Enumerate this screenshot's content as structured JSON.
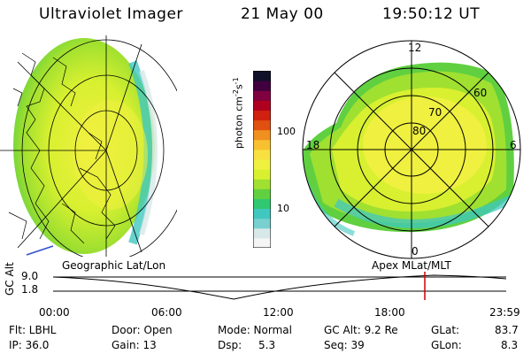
{
  "header": {
    "title": "Ultraviolet Imager",
    "date": "21 May 00",
    "time": "19:50:12 UT"
  },
  "colorbar": {
    "unit_label": "photon cm",
    "unit_exp1": "-2",
    "unit_s": "s",
    "unit_exp2": "-1",
    "tick_100": "100",
    "tick_10": "10",
    "colors": [
      "#f5f5f5",
      "#d8e8e8",
      "#78d0d0",
      "#40c8c0",
      "#30c870",
      "#60d040",
      "#a0e030",
      "#d8f030",
      "#f0f040",
      "#f8e040",
      "#f8c030",
      "#f09020",
      "#e05010",
      "#d02010",
      "#b00020",
      "#800040",
      "#400040",
      "#101028"
    ]
  },
  "polar_plot": {
    "lat_80": "80",
    "lat_70": "70",
    "lat_60": "60",
    "mlt_12": "12",
    "mlt_6": "6",
    "mlt_0": "0",
    "mlt_18": "18"
  },
  "timeline": {
    "label_left": "Geographic Lat/Lon",
    "label_right": "Apex MLat/MLT",
    "axis_title": "GC Alt",
    "y_top": "9.0",
    "y_bottom": "1.8",
    "times": [
      "00:00",
      "06:00",
      "12:00",
      "18:00",
      "23:59"
    ],
    "marker_color": "#d00000"
  },
  "footer": {
    "flt": "Flt: LBHL",
    "ip": "IP: 36.0",
    "door": "Door: Open",
    "gain": "Gain: 13",
    "mode": "Mode: Normal",
    "dsp_label": "Dsp:",
    "dsp_value": "5.3",
    "gcalt": "GC Alt: 9.2 Re",
    "seq": "Seq: 39",
    "glat_label": "GLat:",
    "glat_value": "83.7",
    "glon_label": "GLon:",
    "glon_value": "8.3"
  }
}
